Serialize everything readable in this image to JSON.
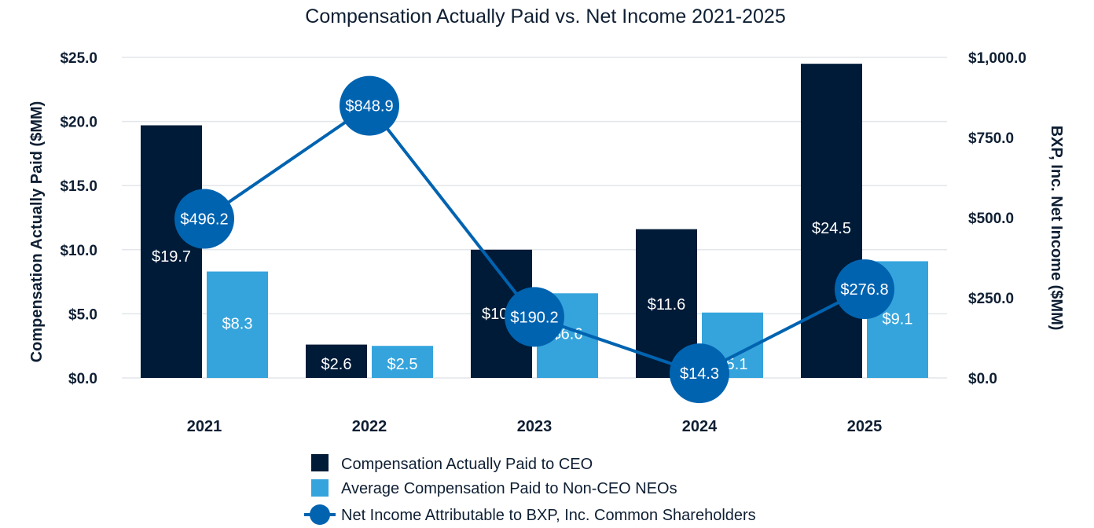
{
  "chart_data": {
    "type": "bar",
    "title": "Compensation Actually Paid vs. Net Income 2021-2025",
    "categories": [
      "2021",
      "2022",
      "2023",
      "2024",
      "2025"
    ],
    "ylabel_left": "Compensation Actually Paid ($MM)",
    "ylabel_right": "BXP, Inc. Net Income ($MM)",
    "ylim_left": [
      0,
      25
    ],
    "ylim_right": [
      0,
      1000
    ],
    "yticks_left": [
      "$0.0",
      "$5.0",
      "$10.0",
      "$15.0",
      "$20.0",
      "$25.0"
    ],
    "yticks_right": [
      "$0.0",
      "$250.0",
      "$500.0",
      "$750.0",
      "$1,000.0"
    ],
    "grid": true,
    "legend_position": "bottom",
    "series": [
      {
        "name": "Compensation Actually Paid to CEO",
        "type": "bar",
        "axis": "left",
        "color": "#001b38",
        "values": [
          19.7,
          2.6,
          10.0,
          11.6,
          24.5
        ],
        "labels": [
          "$19.7",
          "$2.6",
          "$10.0",
          "$11.6",
          "$24.5"
        ]
      },
      {
        "name": "Average Compensation Paid to Non-CEO NEOs",
        "type": "bar",
        "axis": "left",
        "color": "#35a4dc",
        "values": [
          8.3,
          2.5,
          6.6,
          5.1,
          9.1
        ],
        "labels": [
          "$8.3",
          "$2.5",
          "$6.6",
          "$5.1",
          "$9.1"
        ]
      },
      {
        "name": "Net Income Attributable to BXP, Inc. Common Shareholders",
        "type": "line",
        "axis": "right",
        "color": "#0063b0",
        "values": [
          496.2,
          848.9,
          190.2,
          14.3,
          276.8
        ],
        "labels": [
          "$496.2",
          "$848.9",
          "$190.2",
          "$14.3",
          "$276.8"
        ]
      }
    ]
  }
}
